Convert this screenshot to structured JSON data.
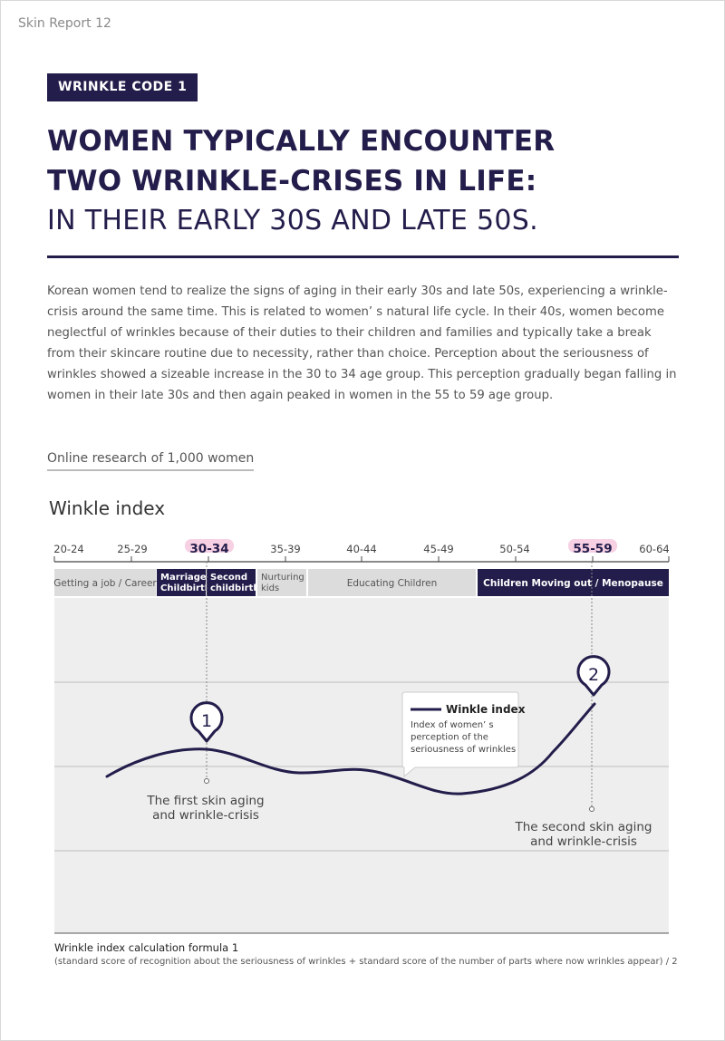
{
  "header": {
    "text": "Skin Report 12"
  },
  "badge": {
    "label": "WRINKLE CODE 1"
  },
  "title": {
    "line1": "WOMEN TYPICALLY ENCOUNTER",
    "line2": "TWO WRINKLE-CRISES IN LIFE:",
    "line3": "IN THEIR EARLY 30S AND LATE 50S."
  },
  "intro": "Korean women tend to realize the signs of aging in their early 30s and late 50s, experiencing a wrinkle-crisis around the same time. This is related to women’ s natural life cycle. In their 40s, women become neglectful of wrinkles because of their duties to their children and families and typically take a break from their skincare routine due to necessity, rather than choice. Perception about the seriousness of wrinkles showed a sizeable increase in the 30 to 34 age group. This perception gradually began falling in women in their late 30s and then again peaked in women in the 55 to 59 age group.",
  "research": "Online research of 1,000 women",
  "chart_title": "Winkle index",
  "chart_data": {
    "type": "line",
    "title": "Winkle index",
    "categories": [
      "20-24",
      "25-29",
      "30-34",
      "35-39",
      "40-44",
      "45-49",
      "50-54",
      "55-59",
      "60-64"
    ],
    "highlighted": [
      "30-34",
      "55-59"
    ],
    "stages": [
      {
        "label": "Getting a job / Career",
        "dark": false
      },
      {
        "label": "Marriage / Childbirth",
        "dark": true
      },
      {
        "label": "Second childbirth",
        "dark": true
      },
      {
        "label": "Nurturing kids",
        "dark": false
      },
      {
        "label": "Educating Children",
        "dark": false
      },
      {
        "label": "Children Moving out / Menopause",
        "dark": true
      }
    ],
    "legend": {
      "name": "Winkle index",
      "description": "Index of women’ s perception of the seriousness of wrinkles"
    },
    "annotations": [
      {
        "marker": "1",
        "text_line1": "The first skin aging",
        "text_line2": "and wrinkle-crisis"
      },
      {
        "marker": "2",
        "text_line1": "The second skin aging",
        "text_line2": "and wrinkle-crisis"
      }
    ],
    "colors": {
      "line": "#221d4a",
      "dark": "#221d4a",
      "light": "#dcdcdc",
      "plot_bg": "#eeeeee",
      "highlight": "#f7d0e4"
    }
  },
  "footnote": {
    "title": "Wrinkle index calculation formula 1",
    "formula": "(standard score of recognition about the seriousness of wrinkles + standard score of the number of parts where now wrinkles appear) / 2"
  }
}
